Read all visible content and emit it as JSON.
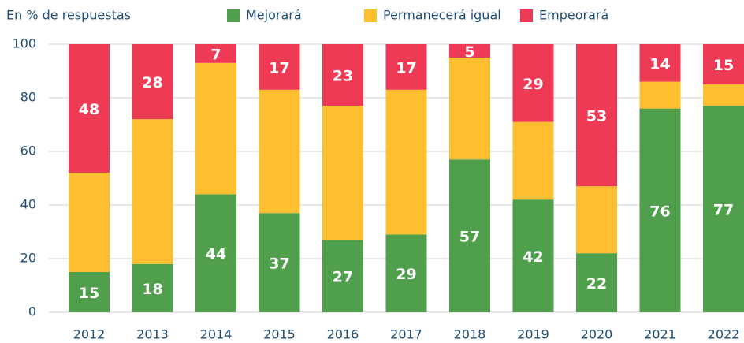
{
  "chart_data": {
    "type": "stacked_bar",
    "subtitle": "En % de respuestas",
    "categories": [
      "2012",
      "2013",
      "2014",
      "2015",
      "2016",
      "2017",
      "2018",
      "2019",
      "2020",
      "2021",
      "2022"
    ],
    "series": [
      {
        "name": "Mejorará",
        "color": "#4f9f4c",
        "show_labels": true,
        "values": [
          15,
          18,
          44,
          37,
          27,
          29,
          57,
          42,
          22,
          76,
          77
        ]
      },
      {
        "name": "Permanecerá igual",
        "color": "#fdbf2f",
        "show_labels": false,
        "values": [
          37,
          54,
          49,
          46,
          50,
          54,
          38,
          29,
          25,
          10,
          8
        ]
      },
      {
        "name": "Empeorará",
        "color": "#ef3a56",
        "show_labels": true,
        "values": [
          48,
          28,
          7,
          17,
          23,
          17,
          5,
          29,
          53,
          14,
          15
        ]
      }
    ],
    "ylim": [
      0,
      100
    ],
    "yticks": [
      0,
      20,
      40,
      60,
      80,
      100
    ],
    "grid": true
  }
}
